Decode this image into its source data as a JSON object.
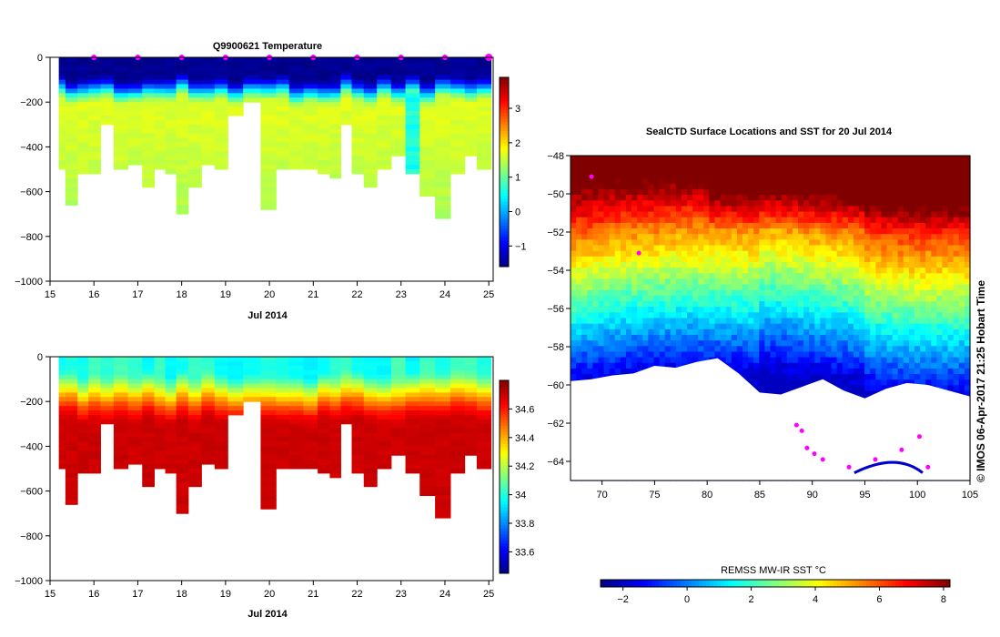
{
  "colors": {
    "jet_stops": [
      "#000080",
      "#0000ff",
      "#0080ff",
      "#00ffff",
      "#80ff80",
      "#ffff00",
      "#ff8000",
      "#ff0000",
      "#800000"
    ],
    "profile_marker": "#ff00ff",
    "land_mask": "#ffffff",
    "seal_tracks": "#ff00ff",
    "ice_edge": "#0000cc"
  },
  "chart_data": [
    {
      "id": "temperature",
      "type": "heatmap",
      "title": "Q9900621  Temperature",
      "xlabel": "Jul 2014",
      "ylabel": "",
      "xlim": [
        15,
        25.1
      ],
      "ylim": [
        -1000,
        0
      ],
      "x_ticks": [
        15,
        16,
        17,
        18,
        19,
        20,
        21,
        22,
        23,
        24,
        25
      ],
      "y_ticks": [
        0,
        -200,
        -400,
        -600,
        -800,
        -1000
      ],
      "colorbar": {
        "min": -1.6,
        "max": 3.9,
        "ticks": [
          -1,
          0,
          1,
          2,
          3
        ]
      },
      "profile_times": [
        15.2,
        15.5,
        15.75,
        16.0,
        16.3,
        16.6,
        16.95,
        17.25,
        17.5,
        17.75,
        18.0,
        18.3,
        18.6,
        18.9,
        19.2,
        19.6,
        20.0,
        20.3,
        20.6,
        20.95,
        21.25,
        21.5,
        21.75,
        22.0,
        22.3,
        22.6,
        22.95,
        23.25,
        23.6,
        23.95,
        24.3,
        24.6,
        24.85
      ],
      "max_depths": [
        500,
        650,
        510,
        520,
        300,
        500,
        480,
        580,
        500,
        510,
        700,
        580,
        480,
        500,
        260,
        200,
        670,
        500,
        490,
        500,
        510,
        530,
        300,
        510,
        570,
        500,
        440,
        510,
        610,
        710,
        510,
        440,
        500
      ],
      "marker_times": [
        16,
        17,
        18,
        19,
        20,
        21,
        22,
        23,
        24,
        25
      ],
      "value_model": {
        "surface": -1.5,
        "thermocline_top": 70,
        "thermocline_bottom": 200,
        "deep": 1.3
      }
    },
    {
      "id": "salinity",
      "type": "heatmap",
      "title": "",
      "xlabel": "Jul 2014",
      "ylabel": "",
      "xlim": [
        15,
        25.1
      ],
      "ylim": [
        -1000,
        0
      ],
      "x_ticks": [
        15,
        16,
        17,
        18,
        19,
        20,
        21,
        22,
        23,
        24,
        25
      ],
      "y_ticks": [
        0,
        -200,
        -400,
        -600,
        -800,
        -1000
      ],
      "colorbar": {
        "min": 33.45,
        "max": 34.8,
        "ticks": [
          33.6,
          33.8,
          34,
          34.2,
          34.4,
          34.6
        ]
      },
      "profile_times": [
        15.2,
        15.5,
        15.75,
        16.0,
        16.3,
        16.6,
        16.95,
        17.25,
        17.5,
        17.75,
        18.0,
        18.3,
        18.6,
        18.9,
        19.2,
        19.6,
        20.0,
        20.3,
        20.6,
        20.95,
        21.25,
        21.5,
        21.75,
        22.0,
        22.3,
        22.6,
        22.95,
        23.25,
        23.6,
        23.95,
        24.3,
        24.6,
        24.85
      ],
      "max_depths": [
        500,
        650,
        510,
        520,
        300,
        500,
        480,
        580,
        500,
        510,
        700,
        580,
        480,
        500,
        260,
        200,
        670,
        500,
        490,
        500,
        510,
        530,
        300,
        510,
        570,
        500,
        440,
        510,
        610,
        710,
        510,
        440,
        500
      ],
      "value_model": {
        "surface": 34.0,
        "halocline_top": 60,
        "halocline_bottom": 300,
        "deep": 34.7
      }
    },
    {
      "id": "sst-map",
      "type": "heatmap",
      "title": "SealCTD Surface Locations and SST for 20 Jul 2014",
      "xlabel": "",
      "ylabel": "",
      "xlim": [
        67,
        105
      ],
      "ylim": [
        -65,
        -48
      ],
      "x_ticks": [
        70,
        75,
        80,
        85,
        90,
        95,
        100,
        105
      ],
      "y_ticks": [
        -48,
        -50,
        -52,
        -54,
        -56,
        -58,
        -60,
        -62,
        -64
      ],
      "colorbar": {
        "label": "REMSS MW-IR SST °C",
        "min": -2.7,
        "max": 8.2,
        "ticks": [
          -2,
          0,
          2,
          4,
          6,
          8
        ]
      },
      "ice_edge_lat": [
        -59.8,
        -59.7,
        -59.5,
        -59.4,
        -59.0,
        -59.1,
        -58.8,
        -58.6,
        -59.4,
        -60.4,
        -60.5,
        -60.1,
        -59.7,
        -60.3,
        -60.7,
        -60.2,
        -59.9,
        -60.0
      ],
      "ice_edge_lon": [
        67,
        69,
        71,
        73,
        75,
        77,
        79,
        81,
        83,
        85,
        87,
        89,
        91,
        93,
        95,
        97,
        99,
        101
      ],
      "seal_points": [
        {
          "lon": 88.5,
          "lat": -62.1
        },
        {
          "lon": 89.0,
          "lat": -62.4
        },
        {
          "lon": 89.5,
          "lat": -63.3
        },
        {
          "lon": 90.2,
          "lat": -63.6
        },
        {
          "lon": 91.0,
          "lat": -63.9
        },
        {
          "lon": 93.5,
          "lat": -64.3
        },
        {
          "lon": 96.0,
          "lat": -63.9
        },
        {
          "lon": 98.5,
          "lat": -63.4
        },
        {
          "lon": 100.2,
          "lat": -62.7
        },
        {
          "lon": 101.0,
          "lat": -64.3
        },
        {
          "lon": 69.0,
          "lat": -49.1
        },
        {
          "lon": 73.5,
          "lat": -53.1
        }
      ]
    }
  ],
  "watermark": "© IMOS 06-Apr-2017 21:25 Hobart Time"
}
